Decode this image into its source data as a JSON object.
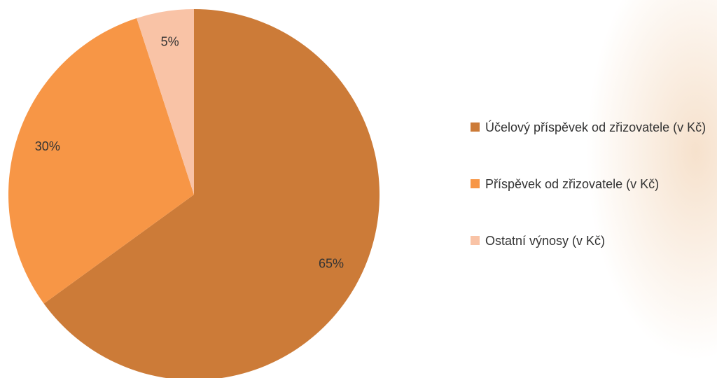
{
  "chart_data": {
    "type": "pie",
    "categories": [
      "Účelový příspěvek od zřizovatele (v Kč)",
      "Příspěvek od zřizovatele (v Kč)",
      "Ostatní výnosy (v Kč)"
    ],
    "values": [
      65,
      30,
      5
    ],
    "value_labels": [
      "65%",
      "30%",
      "5%"
    ],
    "colors": [
      "#cc7b38",
      "#f79646",
      "#f9c3a6"
    ],
    "legend": "right"
  }
}
